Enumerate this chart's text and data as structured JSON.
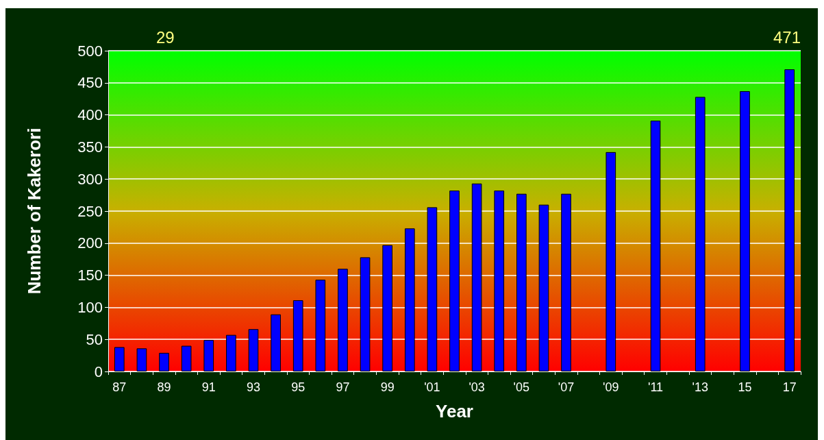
{
  "chart_data": {
    "type": "bar",
    "xlabel": "Year",
    "ylabel": "Number of Kakerori",
    "categories": [
      "87",
      null,
      "89",
      null,
      "91",
      null,
      "93",
      null,
      "95",
      null,
      "97",
      null,
      "99",
      null,
      "'01",
      null,
      "'03",
      null,
      "'05",
      null,
      "'07",
      null,
      "'09",
      null,
      "'11",
      null,
      "'13",
      null,
      "15",
      null,
      "17"
    ],
    "values": [
      38,
      36,
      29,
      40,
      49,
      57,
      66,
      89,
      111,
      143,
      160,
      178,
      197,
      223,
      256,
      282,
      293,
      282,
      277,
      260,
      277,
      null,
      342,
      null,
      391,
      null,
      428,
      null,
      437,
      null,
      471
    ],
    "color": "#0000ff",
    "ylim": [
      0,
      500
    ],
    "yticks": [
      0,
      50,
      100,
      150,
      200,
      250,
      300,
      350,
      400,
      450,
      500
    ],
    "grid": "y",
    "annotations": [
      "29",
      "471"
    ]
  }
}
